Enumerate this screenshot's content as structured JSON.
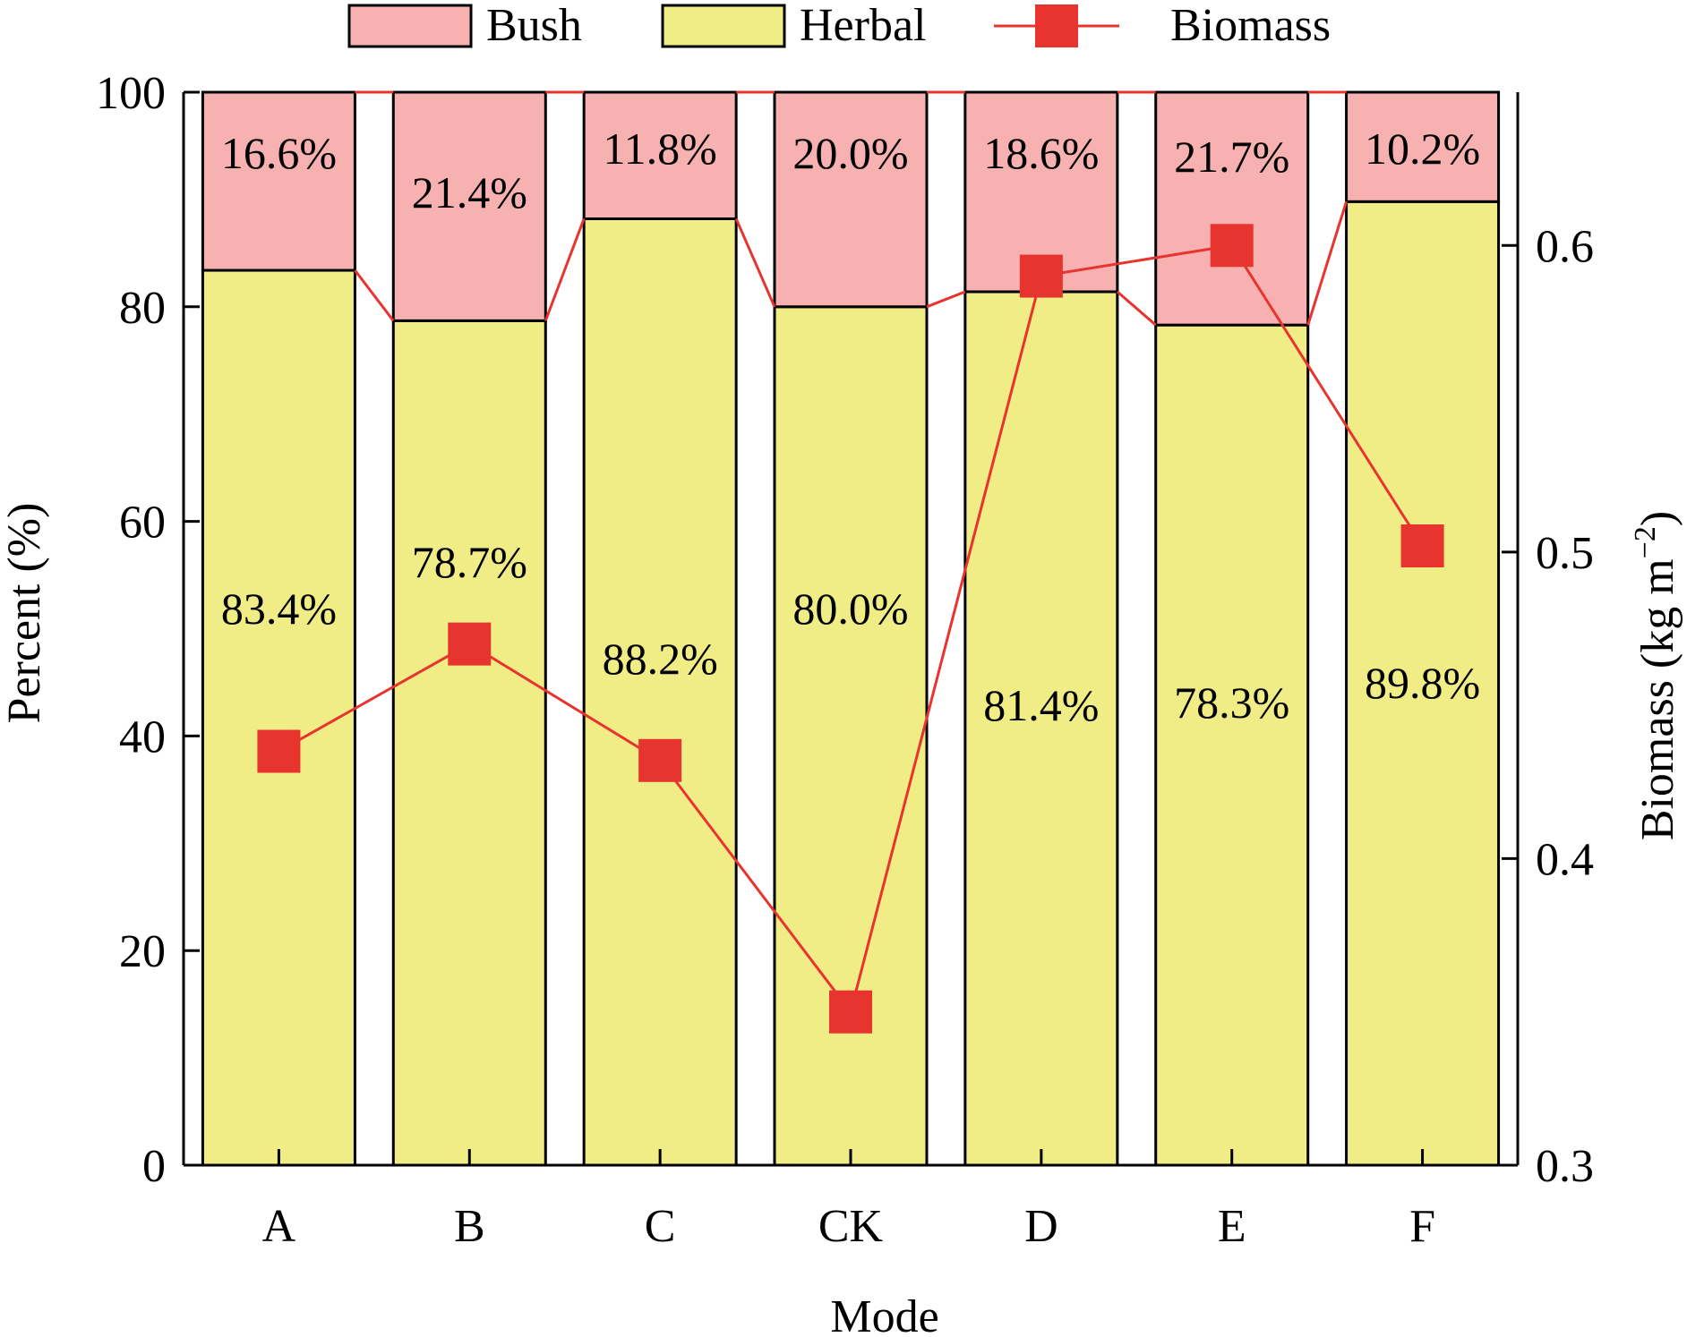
{
  "chart_data": {
    "type": "bar",
    "stacked": true,
    "categories": [
      "A",
      "B",
      "C",
      "CK",
      "D",
      "E",
      "F"
    ],
    "series": [
      {
        "name": "Herbal",
        "axis": "left",
        "color": "#f0ec86",
        "values": [
          83.4,
          78.7,
          88.2,
          80.0,
          81.4,
          78.3,
          89.8
        ],
        "labels": [
          "83.4%",
          "78.7%",
          "88.2%",
          "80.0%",
          "81.4%",
          "78.3%",
          "89.8%"
        ]
      },
      {
        "name": "Bush",
        "axis": "left",
        "color": "#f8b1b1",
        "values": [
          16.6,
          21.4,
          11.8,
          20.0,
          18.6,
          21.7,
          10.2
        ],
        "labels": [
          "16.6%",
          "21.4%",
          "11.8%",
          "20.0%",
          "18.6%",
          "21.7%",
          "10.2%"
        ]
      },
      {
        "name": "Biomass",
        "type": "line",
        "axis": "right",
        "color": "#e8342f",
        "values": [
          0.435,
          0.47,
          0.432,
          0.35,
          0.59,
          0.6,
          0.502
        ]
      }
    ],
    "xlabel": "Mode",
    "ylabel": "Percent (%)",
    "y2label": "Biomass (kg m",
    "y2label_sup": "−2",
    "y2label_end": ")",
    "ylim": [
      0,
      100
    ],
    "yticks": [
      "0",
      "20",
      "40",
      "60",
      "80",
      "100"
    ],
    "y2lim": [
      0.3,
      0.65
    ],
    "y2ticks": [
      "0.3",
      "0.4",
      "0.5",
      "0.6"
    ],
    "legend_position": "top",
    "grid": false
  }
}
